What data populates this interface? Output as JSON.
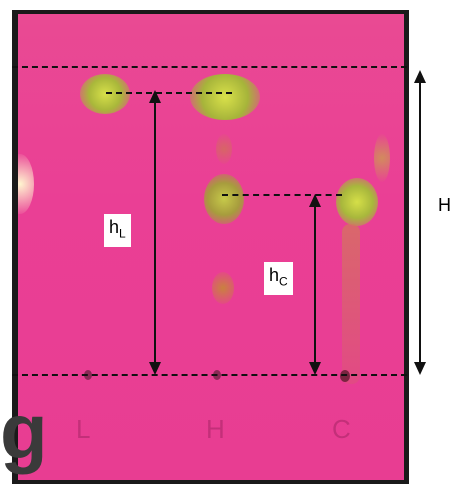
{
  "labels": {
    "hL_main": "h",
    "hL_sub": "L",
    "hC_main": "h",
    "hC_sub": "C",
    "H": "H"
  },
  "lanes": [
    "L",
    "H",
    "C"
  ],
  "cropped_text": "g",
  "colors": {
    "plate": "#ea3f95",
    "spot_yellow": "#c8d63a",
    "line": "#111111"
  }
}
